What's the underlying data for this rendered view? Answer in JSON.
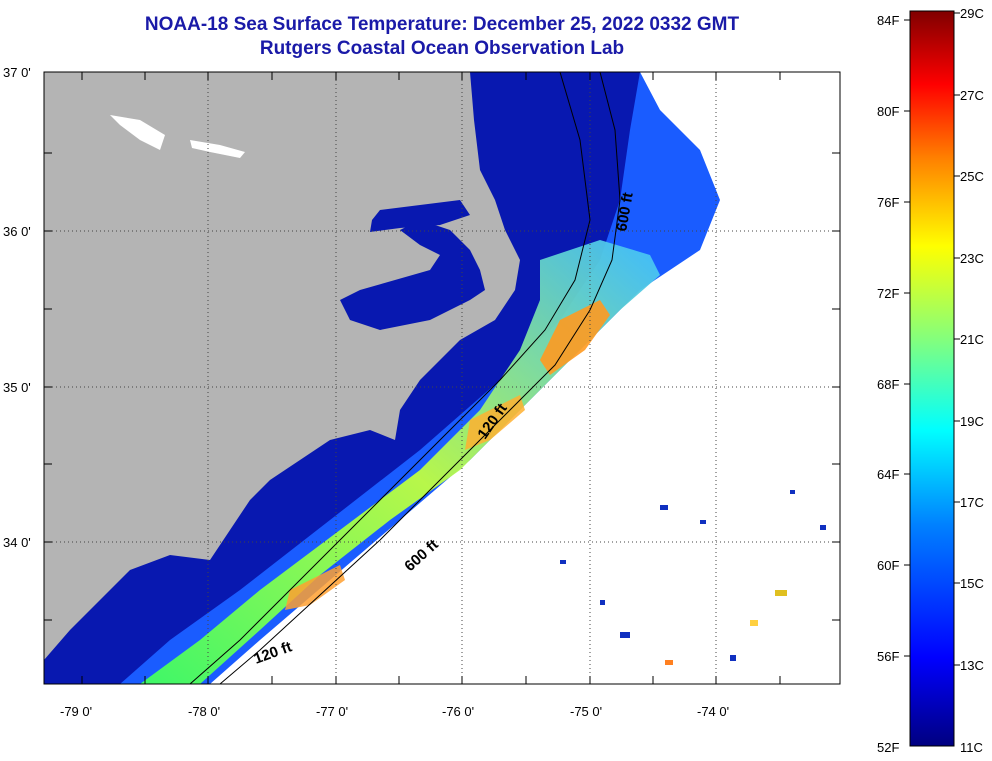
{
  "header": {
    "title_line1": "NOAA-18 Sea Surface Temperature:  December 25, 2022 0332 GMT",
    "title_line2": "Rutgers Coastal Ocean Observation Lab"
  },
  "map": {
    "lat_labels": [
      "37 0'",
      "36 0'",
      "35 0'",
      "34 0'"
    ],
    "lon_labels": [
      "-79 0'",
      "-78 0'",
      "-77 0'",
      "-76 0'",
      "-75 0'",
      "-74 0'"
    ],
    "contours": [
      "600 ft",
      "120 ft",
      "600 ft",
      "120 ft"
    ],
    "colors": {
      "land": "#b4b4b4",
      "missing": "#ffffff",
      "cold_water": "#0010a0"
    }
  },
  "colorbar": {
    "fahrenheit": [
      "84F",
      "80F",
      "76F",
      "72F",
      "68F",
      "64F",
      "60F",
      "56F",
      "52F"
    ],
    "celsius": [
      "29C",
      "27C",
      "25C",
      "23C",
      "21C",
      "19C",
      "17C",
      "15C",
      "13C",
      "11C"
    ],
    "colors": [
      "#800000",
      "#ff0000",
      "#ff8000",
      "#ffff00",
      "#80ff80",
      "#00ffff",
      "#0080ff",
      "#0000ff",
      "#000080"
    ]
  }
}
